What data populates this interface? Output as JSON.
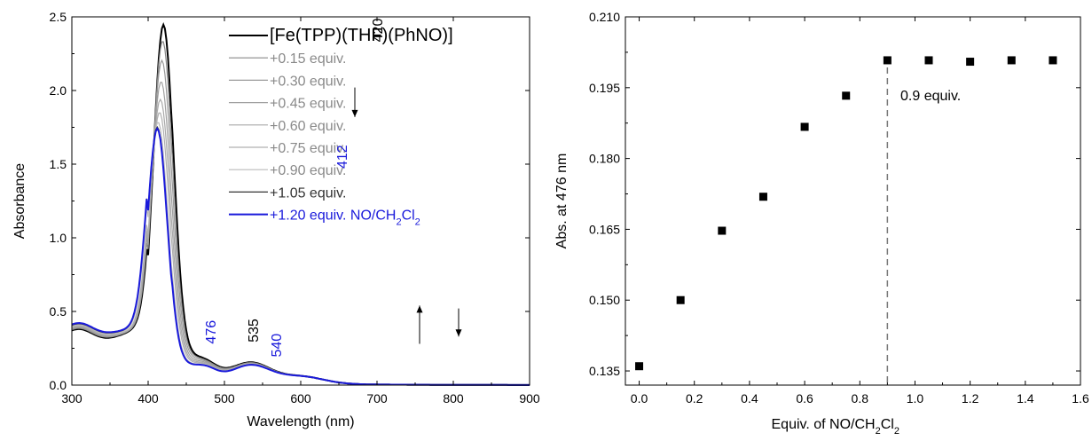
{
  "chart_data": [
    {
      "type": "line",
      "xlabel": "Wavelength (nm)",
      "ylabel": "Absorbance",
      "xlim": [
        300,
        900
      ],
      "ylim": [
        0,
        2.5
      ],
      "xticks": [
        300,
        400,
        500,
        600,
        700,
        800,
        900
      ],
      "yticks": [
        0.0,
        0.5,
        1.0,
        1.5,
        2.0,
        2.5
      ],
      "xtick_labels": [
        "300",
        "400",
        "500",
        "600",
        "700",
        "800",
        "900"
      ],
      "ytick_labels": [
        "0.0",
        "0.5",
        "1.0",
        "1.5",
        "2.0",
        "2.5"
      ],
      "legend_position": "top-right",
      "series": [
        {
          "name": "[Fe(TPP)(THF)(PhNO)]",
          "color": "#000000",
          "peak_nm": 420,
          "peak_abs": 2.22,
          "soret_valley": 0.25,
          "q_band": 0.13
        },
        {
          "name": "+0.15 equiv.",
          "color": "#888888",
          "peak_nm": 419,
          "peak_abs": 2.12,
          "soret_valley": 0.255,
          "q_band": 0.128
        },
        {
          "name": "+0.30 equiv.",
          "color": "#999999",
          "peak_nm": 418,
          "peak_abs": 2.0,
          "soret_valley": 0.26,
          "q_band": 0.126
        },
        {
          "name": "+0.45 equiv.",
          "color": "#a0a0a0",
          "peak_nm": 417,
          "peak_abs": 1.87,
          "soret_valley": 0.265,
          "q_band": 0.124
        },
        {
          "name": "+0.60 equiv.",
          "color": "#aaaaaa",
          "peak_nm": 416,
          "peak_abs": 1.76,
          "soret_valley": 0.27,
          "q_band": 0.122
        },
        {
          "name": "+0.75 equiv.",
          "color": "#b0b0b0",
          "peak_nm": 415,
          "peak_abs": 1.68,
          "soret_valley": 0.275,
          "q_band": 0.12
        },
        {
          "name": "+0.90 equiv.",
          "color": "#bbbbbb",
          "peak_nm": 413,
          "peak_abs": 1.62,
          "soret_valley": 0.28,
          "q_band": 0.118
        },
        {
          "name": "+1.05 equiv.",
          "color": "#333333",
          "peak_nm": 412,
          "peak_abs": 1.59,
          "soret_valley": 0.285,
          "q_band": 0.117
        },
        {
          "name_prefix": "+1.20 equiv. NO/CH",
          "name_sub1": "2",
          "name_mid": "Cl",
          "name_sub2": "2",
          "color": "#1a1adb",
          "peak_nm": 412,
          "peak_abs": 1.58,
          "soret_valley": 0.29,
          "q_band": 0.116
        }
      ],
      "annotations": [
        {
          "text": "420",
          "color": "#000000"
        },
        {
          "text": "412",
          "color": "#1a1adb"
        },
        {
          "text": "476",
          "color": "#1a1adb"
        },
        {
          "text": "535",
          "color": "#000000"
        },
        {
          "text": "540",
          "color": "#1a1adb"
        }
      ]
    },
    {
      "type": "scatter",
      "xlabel_prefix": "Equiv. of NO/CH",
      "xlabel_sub1": "2",
      "xlabel_mid": "Cl",
      "xlabel_sub2": "2",
      "ylabel": "Abs. at 476 nm",
      "xlim": [
        -0.05,
        1.6
      ],
      "ylim": [
        0.132,
        0.21
      ],
      "xticks": [
        0.0,
        0.2,
        0.4,
        0.6,
        0.8,
        1.0,
        1.2,
        1.4,
        1.6
      ],
      "yticks": [
        0.135,
        0.15,
        0.165,
        0.18,
        0.195,
        0.21
      ],
      "xtick_labels": [
        "0.0",
        "0.2",
        "0.4",
        "0.6",
        "0.8",
        "1.0",
        "1.2",
        "1.4",
        "1.6"
      ],
      "ytick_labels": [
        "0.135",
        "0.150",
        "0.165",
        "0.180",
        "0.195",
        "0.210"
      ],
      "x": [
        0.0,
        0.15,
        0.3,
        0.45,
        0.6,
        0.75,
        0.9,
        1.05,
        1.2,
        1.35,
        1.5
      ],
      "y": [
        0.136,
        0.15,
        0.1647,
        0.1719,
        0.1867,
        0.1933,
        0.2008,
        0.2008,
        0.2005,
        0.2008,
        0.2008
      ],
      "vline_x": 0.9,
      "annotation": "0.9 equiv."
    }
  ]
}
